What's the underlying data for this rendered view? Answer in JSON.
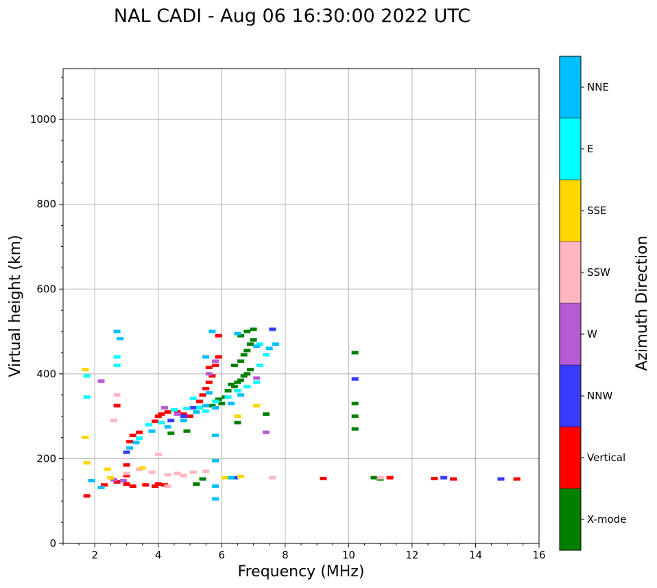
{
  "chart_data": {
    "type": "scatter",
    "title": "NAL CADI - Aug 06 16:30:00 2022 UTC",
    "xlabel": "Frequency (MHz)",
    "ylabel": "Virtual height (km)",
    "xlim": [
      1,
      16
    ],
    "ylim": [
      0,
      1120
    ],
    "xticks": [
      2,
      4,
      6,
      8,
      10,
      12,
      14,
      16
    ],
    "yticks": [
      0,
      200,
      400,
      600,
      800,
      1000
    ],
    "grid": true,
    "colorbar": {
      "label": "Azimuth Direction",
      "categories": [
        {
          "name": "X-mode",
          "color": "#008000"
        },
        {
          "name": "Vertical",
          "color": "#ff0000"
        },
        {
          "name": "NNW",
          "color": "#3a3aff"
        },
        {
          "name": "W",
          "color": "#b65ad6"
        },
        {
          "name": "SSW",
          "color": "#ffb6c1"
        },
        {
          "name": "SSE",
          "color": "#ffd700"
        },
        {
          "name": "E",
          "color": "#00ffff"
        },
        {
          "name": "NNE",
          "color": "#00bfff"
        }
      ]
    },
    "series": [
      {
        "name": "X-mode",
        "points": [
          [
            5.2,
            140
          ],
          [
            5.4,
            152
          ],
          [
            5.7,
            325
          ],
          [
            5.9,
            340
          ],
          [
            6.0,
            330
          ],
          [
            6.1,
            345
          ],
          [
            6.2,
            360
          ],
          [
            6.3,
            375
          ],
          [
            6.4,
            370
          ],
          [
            6.5,
            380
          ],
          [
            6.6,
            385
          ],
          [
            6.7,
            395
          ],
          [
            6.8,
            400
          ],
          [
            6.9,
            410
          ],
          [
            6.4,
            420
          ],
          [
            6.6,
            430
          ],
          [
            6.7,
            445
          ],
          [
            6.8,
            455
          ],
          [
            6.9,
            470
          ],
          [
            7.0,
            480
          ],
          [
            6.6,
            490
          ],
          [
            6.8,
            500
          ],
          [
            7.0,
            505
          ],
          [
            6.5,
            285
          ],
          [
            7.4,
            305
          ],
          [
            4.4,
            260
          ],
          [
            4.9,
            265
          ],
          [
            10.2,
            450
          ],
          [
            10.2,
            330
          ],
          [
            10.2,
            300
          ],
          [
            10.2,
            270
          ],
          [
            10.8,
            155
          ],
          [
            11.0,
            152
          ]
        ]
      },
      {
        "name": "Vertical",
        "points": [
          [
            1.75,
            112
          ],
          [
            2.3,
            138
          ],
          [
            2.7,
            145
          ],
          [
            3.0,
            140
          ],
          [
            3.2,
            135
          ],
          [
            3.6,
            138
          ],
          [
            3.9,
            135
          ],
          [
            4.0,
            140
          ],
          [
            4.2,
            138
          ],
          [
            3.1,
            240
          ],
          [
            3.2,
            255
          ],
          [
            3.4,
            262
          ],
          [
            3.9,
            288
          ],
          [
            4.0,
            300
          ],
          [
            4.1,
            305
          ],
          [
            4.3,
            310
          ],
          [
            4.6,
            310
          ],
          [
            4.8,
            305
          ],
          [
            5.0,
            300
          ],
          [
            5.3,
            335
          ],
          [
            5.4,
            350
          ],
          [
            5.5,
            365
          ],
          [
            5.6,
            380
          ],
          [
            5.7,
            395
          ],
          [
            5.6,
            415
          ],
          [
            5.8,
            420
          ],
          [
            5.9,
            440
          ],
          [
            5.9,
            490
          ],
          [
            3.0,
            185
          ],
          [
            3.0,
            160
          ],
          [
            9.2,
            153
          ],
          [
            11.3,
            155
          ],
          [
            12.7,
            153
          ],
          [
            13.3,
            152
          ],
          [
            15.3,
            152
          ],
          [
            2.7,
            325
          ]
        ]
      },
      {
        "name": "NNW",
        "points": [
          [
            10.2,
            388
          ],
          [
            13.0,
            155
          ],
          [
            14.8,
            152
          ],
          [
            3.0,
            215
          ],
          [
            4.4,
            290
          ],
          [
            4.8,
            300
          ],
          [
            5.1,
            320
          ],
          [
            6.4,
            155
          ],
          [
            7.6,
            505
          ]
        ]
      },
      {
        "name": "W",
        "points": [
          [
            2.2,
            383
          ],
          [
            4.2,
            320
          ],
          [
            4.6,
            305
          ],
          [
            5.6,
            400
          ],
          [
            5.8,
            430
          ],
          [
            7.1,
            390
          ],
          [
            7.4,
            262
          ],
          [
            2.9,
            148
          ],
          [
            2.6,
            150
          ]
        ]
      },
      {
        "name": "SSW",
        "points": [
          [
            3.4,
            175
          ],
          [
            3.8,
            168
          ],
          [
            4.3,
            162
          ],
          [
            4.6,
            165
          ],
          [
            4.8,
            160
          ],
          [
            5.1,
            168
          ],
          [
            5.5,
            170
          ],
          [
            4.3,
            135
          ],
          [
            4.0,
            210
          ],
          [
            7.6,
            155
          ],
          [
            11.0,
            155
          ],
          [
            2.6,
            290
          ],
          [
            2.7,
            350
          ],
          [
            3.0,
            165
          ]
        ]
      },
      {
        "name": "SSE",
        "points": [
          [
            1.7,
            410
          ],
          [
            1.7,
            250
          ],
          [
            1.75,
            190
          ],
          [
            2.4,
            175
          ],
          [
            2.5,
            155
          ],
          [
            6.1,
            155
          ],
          [
            6.6,
            158
          ],
          [
            7.1,
            325
          ],
          [
            6.5,
            300
          ],
          [
            3.5,
            178
          ]
        ]
      },
      {
        "name": "E",
        "points": [
          [
            1.75,
            345
          ],
          [
            1.75,
            395
          ],
          [
            2.7,
            440
          ],
          [
            2.7,
            420
          ],
          [
            3.4,
            248
          ],
          [
            3.7,
            280
          ],
          [
            4.1,
            285
          ],
          [
            4.5,
            315
          ],
          [
            4.9,
            318
          ],
          [
            5.3,
            320
          ],
          [
            5.8,
            335
          ],
          [
            6.2,
            345
          ],
          [
            6.5,
            360
          ],
          [
            6.8,
            370
          ],
          [
            7.1,
            380
          ],
          [
            7.2,
            420
          ],
          [
            7.4,
            445
          ],
          [
            7.2,
            470
          ],
          [
            5.1,
            342
          ],
          [
            5.5,
            312
          ]
        ]
      },
      {
        "name": "NNE",
        "points": [
          [
            1.9,
            148
          ],
          [
            2.2,
            132
          ],
          [
            2.7,
            500
          ],
          [
            2.8,
            483
          ],
          [
            3.1,
            225
          ],
          [
            3.3,
            238
          ],
          [
            3.8,
            265
          ],
          [
            4.3,
            275
          ],
          [
            4.8,
            290
          ],
          [
            5.2,
            310
          ],
          [
            5.5,
            325
          ],
          [
            5.6,
            355
          ],
          [
            5.8,
            320
          ],
          [
            5.8,
            255
          ],
          [
            5.8,
            195
          ],
          [
            5.8,
            135
          ],
          [
            5.8,
            105
          ],
          [
            6.3,
            155
          ],
          [
            6.5,
            495
          ],
          [
            6.3,
            330
          ],
          [
            6.6,
            350
          ],
          [
            7.1,
            465
          ],
          [
            7.5,
            460
          ],
          [
            7.7,
            470
          ],
          [
            5.7,
            500
          ],
          [
            5.5,
            440
          ]
        ]
      }
    ]
  }
}
